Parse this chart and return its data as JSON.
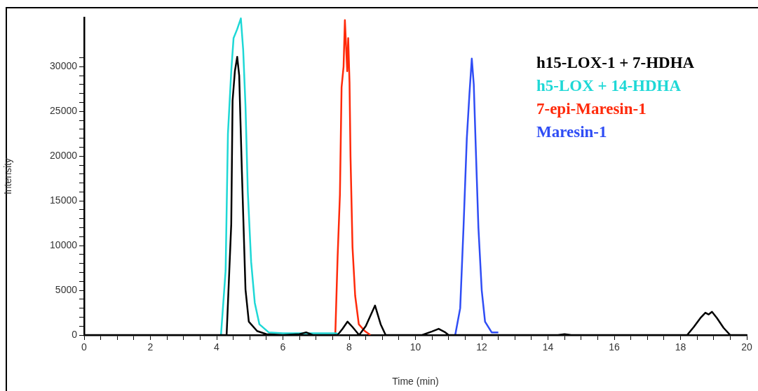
{
  "chart_data": {
    "type": "line",
    "xlabel": "Time (min)",
    "ylabel": "Intensity",
    "xlim": [
      0,
      20
    ],
    "ylim": [
      0,
      35500
    ],
    "xticks": [
      0,
      {
        "value": 0.5,
        "label": null
      },
      {
        "value": 1,
        "label": null
      },
      {
        "value": 1.5,
        "label": null
      },
      2,
      {
        "value": 2.5,
        "label": null
      },
      {
        "value": 3,
        "label": null
      },
      {
        "value": 3.5,
        "label": null
      },
      4,
      {
        "value": 4.5,
        "label": null
      },
      {
        "value": 5,
        "label": null
      },
      {
        "value": 5.5,
        "label": null
      },
      6,
      {
        "value": 6.5,
        "label": null
      },
      {
        "value": 7,
        "label": null
      },
      {
        "value": 7.5,
        "label": null
      },
      8,
      {
        "value": 8.5,
        "label": null
      },
      {
        "value": 9,
        "label": null
      },
      {
        "value": 9.5,
        "label": null
      },
      10,
      {
        "value": 10.5,
        "label": null
      },
      {
        "value": 11,
        "label": null
      },
      {
        "value": 11.5,
        "label": null
      },
      12,
      {
        "value": 12.5,
        "label": null
      },
      {
        "value": 13,
        "label": null
      },
      {
        "value": 13.5,
        "label": null
      },
      14,
      {
        "value": 14.5,
        "label": null
      },
      {
        "value": 15,
        "label": null
      },
      {
        "value": 15.5,
        "label": null
      },
      16,
      {
        "value": 16.5,
        "label": null
      },
      {
        "value": 17,
        "label": null
      },
      {
        "value": 17.5,
        "label": null
      },
      18,
      {
        "value": 18.5,
        "label": null
      },
      {
        "value": 19,
        "label": null
      },
      {
        "value": 19.5,
        "label": null
      },
      20
    ],
    "yticks": [
      0,
      {
        "value": 1000,
        "label": null
      },
      {
        "value": 2000,
        "label": null
      },
      {
        "value": 3000,
        "label": null
      },
      {
        "value": 4000,
        "label": null
      },
      5000,
      {
        "value": 6000,
        "label": null
      },
      {
        "value": 7000,
        "label": null
      },
      {
        "value": 8000,
        "label": null
      },
      {
        "value": 9000,
        "label": null
      },
      10000,
      {
        "value": 11000,
        "label": null
      },
      {
        "value": 12000,
        "label": null
      },
      {
        "value": 13000,
        "label": null
      },
      {
        "value": 14000,
        "label": null
      },
      15000,
      {
        "value": 16000,
        "label": null
      },
      {
        "value": 17000,
        "label": null
      },
      {
        "value": 18000,
        "label": null
      },
      {
        "value": 19000,
        "label": null
      },
      20000,
      {
        "value": 21000,
        "label": null
      },
      {
        "value": 22000,
        "label": null
      },
      {
        "value": 23000,
        "label": null
      },
      {
        "value": 24000,
        "label": null
      },
      25000,
      {
        "value": 26000,
        "label": null
      },
      {
        "value": 27000,
        "label": null
      },
      {
        "value": 28000,
        "label": null
      },
      {
        "value": 29000,
        "label": null
      },
      30000,
      {
        "value": 31000,
        "label": null
      }
    ],
    "grid": false,
    "legend": "top right",
    "marker": "none",
    "line_style": "solid",
    "series": [
      {
        "name": "h15-LOX-1 + 7-HDHA",
        "color": "#000000",
        "x": [
          0,
          4.3,
          4.44,
          4.48,
          4.55,
          4.62,
          4.68,
          4.76,
          4.87,
          4.97,
          5.22,
          5.5,
          6.0,
          6.5,
          6.7,
          6.9,
          7.65,
          7.8,
          7.95,
          8.1,
          8.3,
          8.5,
          8.78,
          8.95,
          9.1,
          10.2,
          10.5,
          10.7,
          10.9,
          11.0,
          14.3,
          14.5,
          14.7,
          18.2,
          18.4,
          18.6,
          18.75,
          18.85,
          18.95,
          19.1,
          19.3,
          19.5,
          20
        ],
        "values": [
          0,
          0,
          12400,
          26200,
          29500,
          31100,
          29000,
          18400,
          5100,
          1500,
          450,
          100,
          0,
          100,
          300,
          0,
          0,
          700,
          1500,
          900,
          0,
          1000,
          3300,
          1200,
          0,
          0,
          400,
          700,
          300,
          0,
          0,
          100,
          0,
          0,
          900,
          1900,
          2500,
          2300,
          2600,
          1900,
          800,
          0,
          0
        ]
      },
      {
        "name": "h5-LOX + 14-HDHA",
        "color": "#1ed8d6",
        "x": [
          4.13,
          4.27,
          4.34,
          4.44,
          4.51,
          4.62,
          4.73,
          4.8,
          4.87,
          4.94,
          5.04,
          5.15,
          5.29,
          5.57,
          6.0,
          6.5,
          7.0,
          7.6,
          7.7
        ],
        "values": [
          0,
          7200,
          22500,
          29500,
          33200,
          34200,
          35400,
          31900,
          25600,
          16000,
          8200,
          3600,
          1200,
          300,
          200,
          200,
          200,
          200,
          0
        ]
      },
      {
        "name": "7-epi-Maresin-1",
        "color": "#ff2a0a",
        "x": [
          7.58,
          7.65,
          7.72,
          7.77,
          7.83,
          7.87,
          7.94,
          7.97,
          8.01,
          8.04,
          8.1,
          8.18,
          8.29,
          8.47,
          8.64
        ],
        "values": [
          0,
          8700,
          15700,
          27700,
          30000,
          35200,
          29500,
          33200,
          28200,
          19900,
          9800,
          4400,
          1200,
          450,
          0
        ]
      },
      {
        "name": "Maresin-1",
        "color": "#2f4df5",
        "x": [
          11.2,
          11.35,
          11.45,
          11.55,
          11.63,
          11.7,
          11.76,
          11.82,
          11.9,
          12.0,
          12.1,
          12.3,
          12.5
        ],
        "values": [
          0,
          3000,
          12000,
          22000,
          27000,
          30900,
          28000,
          21000,
          12000,
          5000,
          1500,
          300,
          300
        ]
      }
    ]
  }
}
